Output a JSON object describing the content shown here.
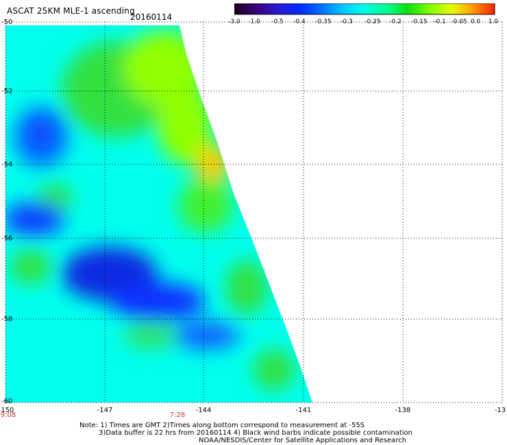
{
  "header": {
    "title": "ASCAT 25KM MLE-1 ascending",
    "date": "20160114"
  },
  "colorbar": {
    "labels": [
      "-3.0",
      "-1.0",
      "-0.5",
      "-0.4",
      "-0.35",
      "-0.3",
      "-0.25",
      "-0.2",
      "-0.15",
      "-0.1",
      "-0.05",
      "0.0",
      "1.0"
    ],
    "colors": [
      "#1a001a",
      "#3a0078",
      "#2a1ad0",
      "#0028ff",
      "#0070ff",
      "#00c8ff",
      "#00ffe8",
      "#00ff90",
      "#10e010",
      "#80ff00",
      "#e8ff00",
      "#ff9900",
      "#ff2000"
    ]
  },
  "axes": {
    "lat_labels": [
      "-50",
      "-52",
      "-54",
      "-56",
      "-58",
      "-60"
    ],
    "lon_labels": [
      "-150",
      "-147",
      "-144",
      "-141",
      "-138",
      "-13"
    ],
    "time_labels": [
      "9:08",
      "7:28"
    ]
  },
  "notes": [
    "Note: 1) Times are GMT 2)Times along bottom correspond to measurement at -55S",
    "3)Data buffer is 22 hrs from 20160114 4) Black wind barbs indicate possible contamination",
    "NOAA/NESDIS/Center for Satellite Applications and Research"
  ]
}
